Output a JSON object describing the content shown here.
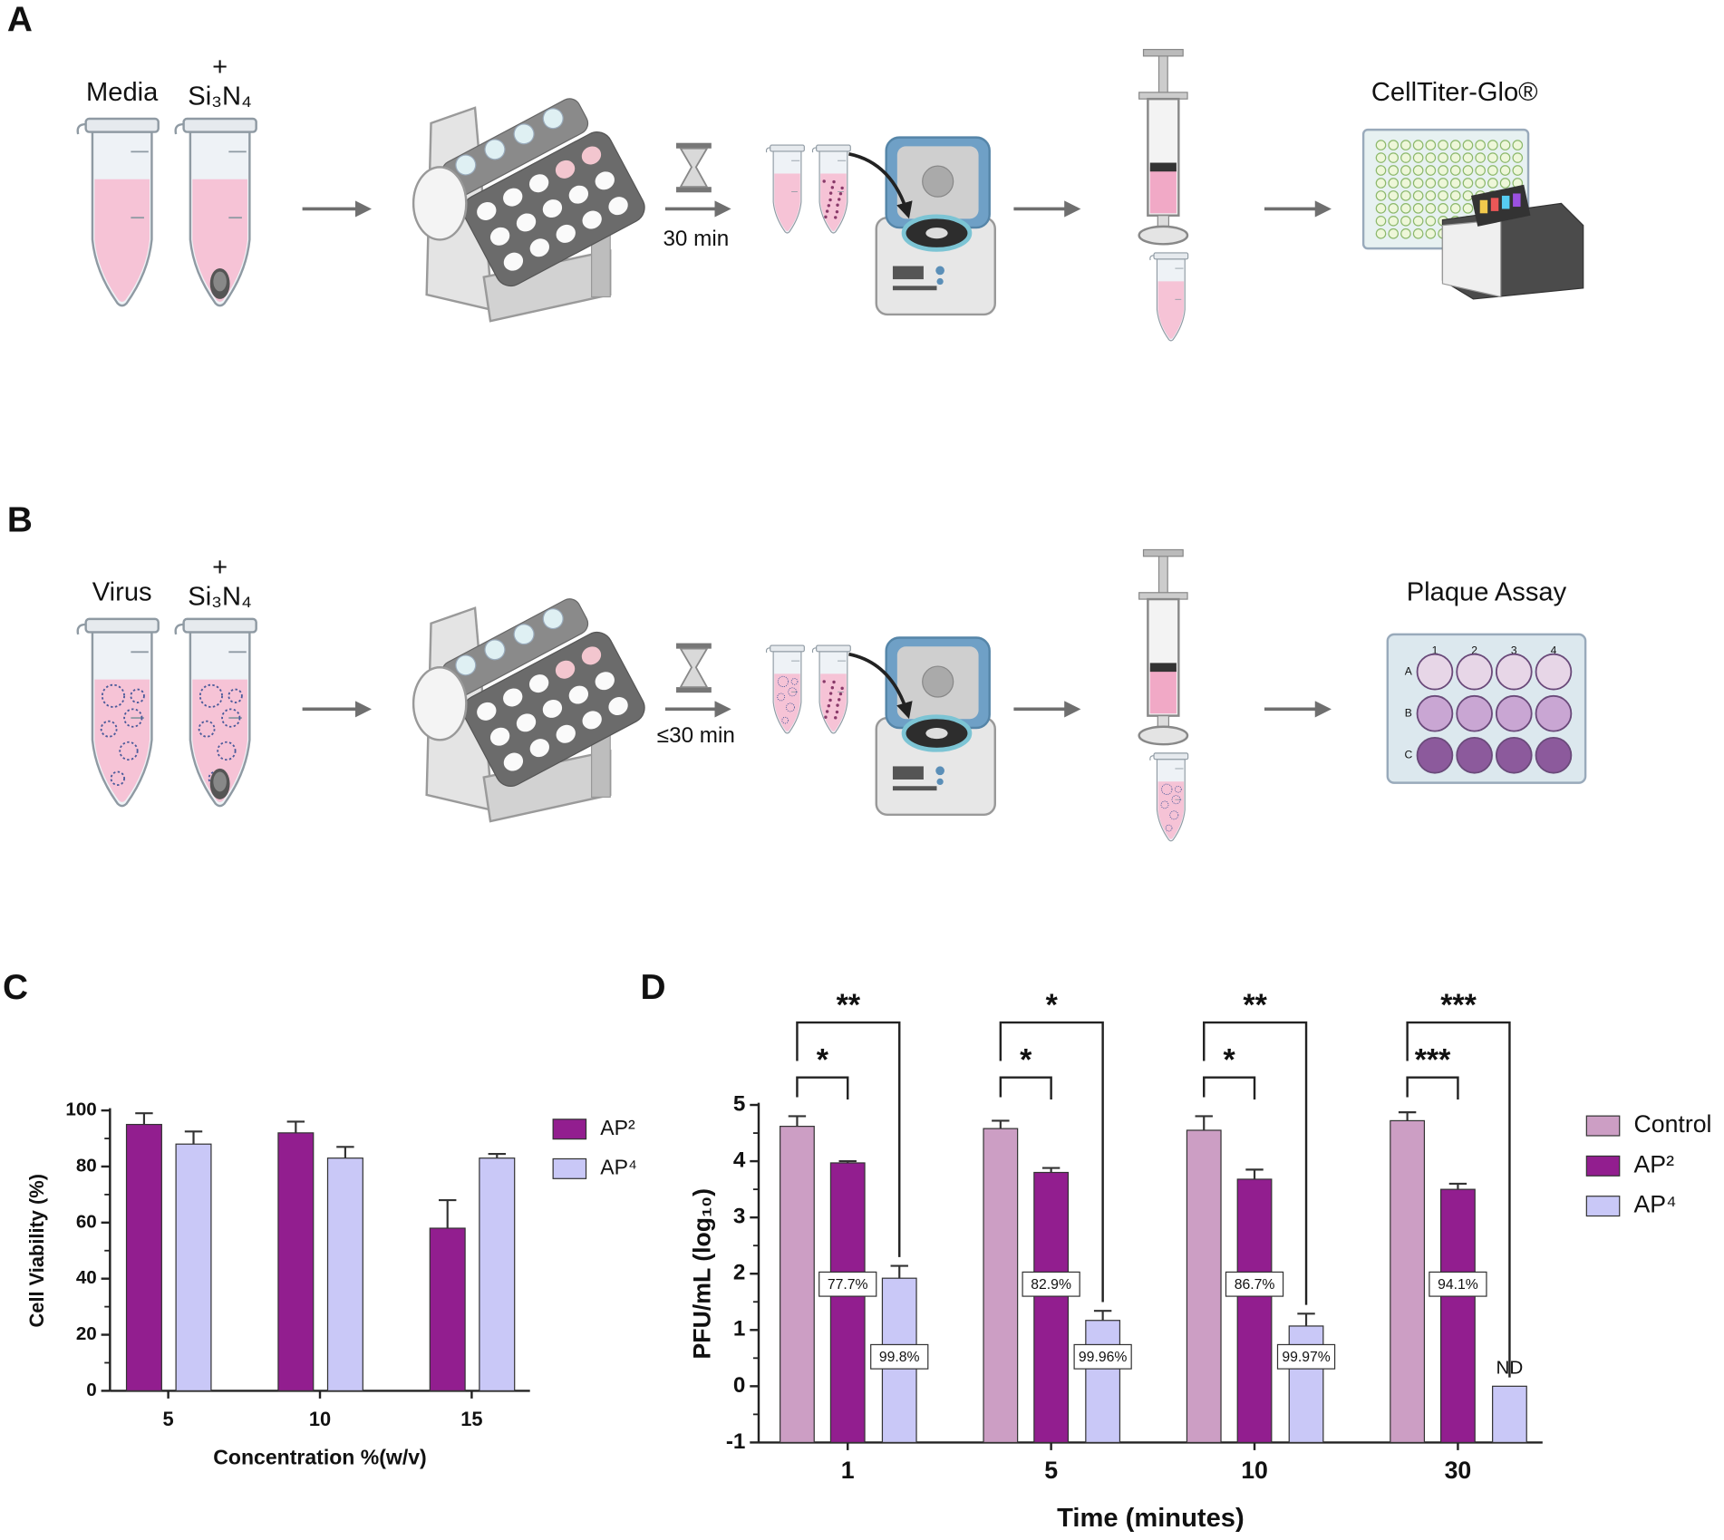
{
  "panels": [
    {
      "label": "A",
      "tube_labels": [
        "Media",
        "+",
        "Si₃N₄"
      ],
      "time": "30 min",
      "readout": "CellTiter-Glo®"
    },
    {
      "label": "B",
      "tube_labels": [
        "Virus",
        "+",
        "Si₃N₄"
      ],
      "time": "≤30 min",
      "readout": "Plaque Assay",
      "plate_columns": [
        "1",
        "2",
        "3",
        "4"
      ],
      "plate_rows": [
        "A",
        "B",
        "C"
      ]
    }
  ],
  "chart_data": [
    {
      "type": "bar",
      "panel_label": "C",
      "xlabel": "Concentration %(w/v)",
      "ylabel": "Cell Viability (%)",
      "categories": [
        "5",
        "10",
        "15"
      ],
      "series": [
        {
          "name": "AP²",
          "color": "#921e8f",
          "values": [
            95,
            92,
            58
          ],
          "errors": [
            4,
            4,
            10
          ]
        },
        {
          "name": "AP⁴",
          "color": "#c9c8f7",
          "values": [
            88,
            83,
            83
          ],
          "errors": [
            4.5,
            4,
            1.5
          ]
        }
      ],
      "ylim": [
        0,
        100
      ],
      "yticks": [
        0,
        20,
        40,
        60,
        80,
        100
      ],
      "legend": "right"
    },
    {
      "type": "bar",
      "panel_label": "D",
      "xlabel": "Time (minutes)",
      "ylabel": "PFU/mL (log₁₀)",
      "categories": [
        "1",
        "5",
        "10",
        "30"
      ],
      "series": [
        {
          "name": "Control",
          "color": "#cc9ec4",
          "values": [
            4.62,
            4.58,
            4.55,
            4.72
          ],
          "errors": [
            0.18,
            0.14,
            0.25,
            0.15
          ]
        },
        {
          "name": "AP²",
          "color": "#921e8f",
          "values": [
            3.97,
            3.8,
            3.68,
            3.5
          ],
          "errors": [
            0.03,
            0.08,
            0.17,
            0.1
          ],
          "annotations": [
            "77.7%",
            "82.9%",
            "86.7%",
            "94.1%"
          ],
          "significance": [
            "*",
            "*",
            "*",
            "***"
          ]
        },
        {
          "name": "AP⁴",
          "color": "#c9c8f7",
          "values": [
            1.92,
            1.17,
            1.07,
            0
          ],
          "errors": [
            0.22,
            0.17,
            0.22,
            null
          ],
          "annotations": [
            "99.8%",
            "99.96%",
            "99.97%",
            "ND"
          ],
          "significance": [
            "**",
            "*",
            "**",
            "***"
          ]
        }
      ],
      "ylim": [
        -1,
        5
      ],
      "yticks": [
        -1,
        0,
        1,
        2,
        3,
        4,
        5
      ],
      "legend": "right"
    }
  ]
}
